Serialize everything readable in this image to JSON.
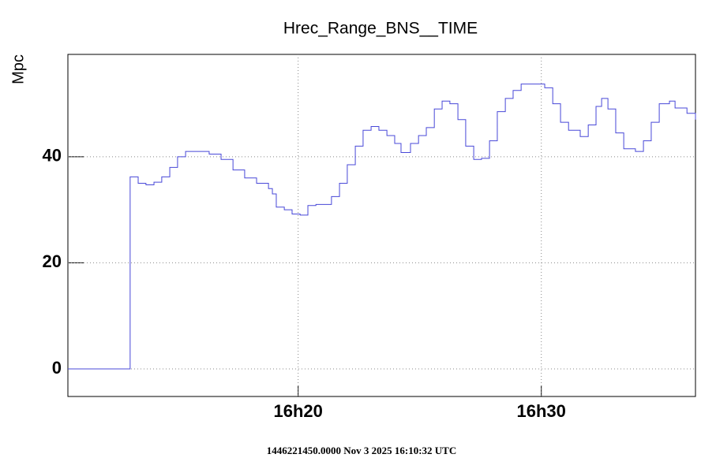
{
  "chart_data": {
    "type": "step",
    "title": "Hrec_Range_BNS__TIME",
    "y_label": "Mpc",
    "footer": "1446221450.0000 Nov 3 2025 16:10:32 UTC",
    "x": [
      10.53,
      13.0,
      13.09,
      13.42,
      13.74,
      14.07,
      14.39,
      14.72,
      15.04,
      15.37,
      15.85,
      16.34,
      16.83,
      17.32,
      17.8,
      18.29,
      18.78,
      18.94,
      19.1,
      19.43,
      19.75,
      20.08,
      20.4,
      20.73,
      21.05,
      21.37,
      21.7,
      22.02,
      22.35,
      22.67,
      23.0,
      23.32,
      23.65,
      23.97,
      24.23,
      24.62,
      24.95,
      25.27,
      25.6,
      25.92,
      26.24,
      26.57,
      26.89,
      27.22,
      27.54,
      27.87,
      28.19,
      28.52,
      28.84,
      29.17,
      29.82,
      30.14,
      30.47,
      30.79,
      31.12,
      31.6,
      31.93,
      32.25,
      32.48,
      32.74,
      33.06,
      33.39,
      33.87,
      34.2,
      34.52,
      34.85,
      35.27,
      35.5,
      35.99,
      36.34
    ],
    "series": [
      {
        "color": "#4848d8",
        "values": [
          0,
          0,
          36.2,
          35,
          34.7,
          35.2,
          36.2,
          38,
          40,
          41,
          41,
          40.5,
          39.5,
          37.5,
          36,
          35,
          34,
          33,
          30.5,
          30,
          29.2,
          29,
          30.8,
          31,
          31,
          32.5,
          35,
          38.5,
          42,
          45,
          45.7,
          45,
          44,
          42.5,
          40.8,
          42.5,
          44,
          45.5,
          49,
          50.5,
          50,
          47,
          42,
          39.5,
          39.7,
          43,
          48.5,
          51,
          52.5,
          53.7,
          53.7,
          53,
          50,
          46.5,
          45,
          43.8,
          46,
          49.5,
          51,
          49,
          44.5,
          41.5,
          41,
          43,
          46.5,
          50,
          50.5,
          49.2,
          48.2,
          47
        ]
      }
    ],
    "xlim": [
      10.53,
      36.34
    ],
    "xticks": [
      {
        "value": 20,
        "label": "16h20"
      },
      {
        "value": 30,
        "label": "16h30"
      }
    ],
    "ylim": [
      -5.2,
      59.3
    ],
    "yticks": [
      0,
      20,
      40
    ],
    "grid": true
  }
}
